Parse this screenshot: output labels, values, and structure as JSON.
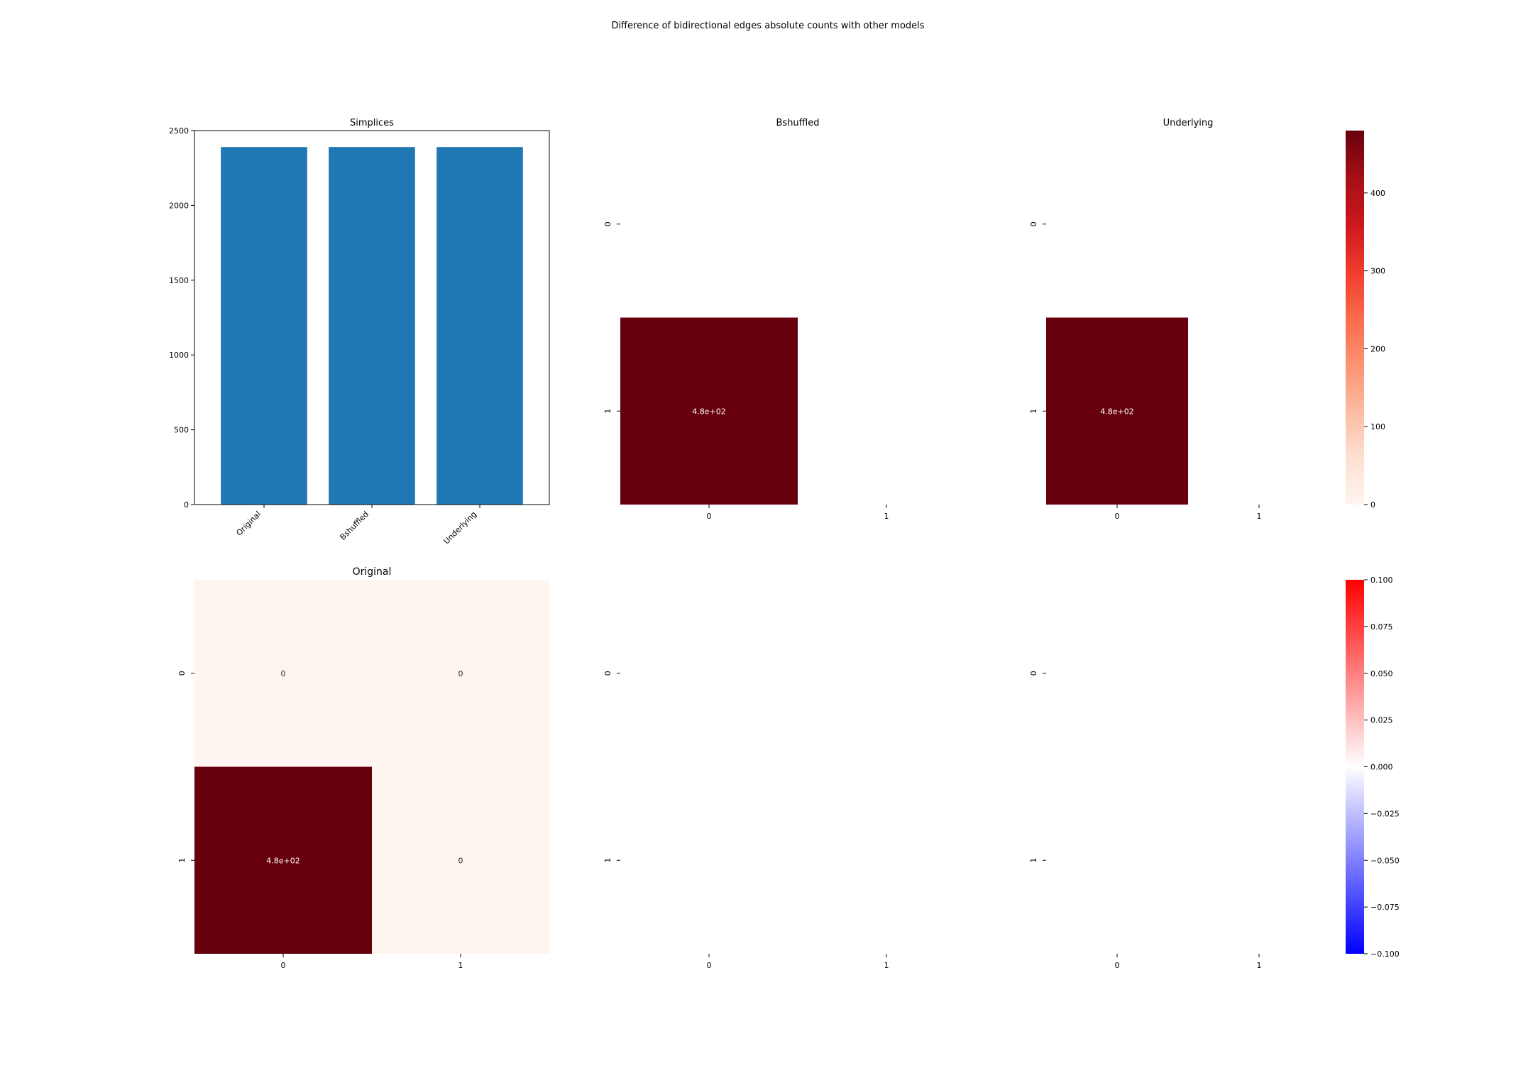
{
  "figure": {
    "suptitle": "Difference of bidirectional edges absolute counts with other models"
  },
  "chart_data": [
    {
      "type": "bar",
      "title": "Simplices",
      "categories": [
        "Original",
        "Bshuffled",
        "Underlying"
      ],
      "values": [
        2390,
        2390,
        2390
      ],
      "ylim": [
        0,
        2500
      ],
      "yticks": [
        "0",
        "500",
        "1000",
        "1500",
        "2000",
        "2500"
      ],
      "color": "#1f77b4"
    },
    {
      "type": "heatmap",
      "title": "Bshuffled",
      "xticks": [
        "0",
        "1"
      ],
      "yticks": [
        "0",
        "1"
      ],
      "cells": [
        {
          "row": 1,
          "col": 0,
          "value": 480,
          "label": "4.8e+02",
          "color": "#67000d"
        }
      ]
    },
    {
      "type": "heatmap",
      "title": "Underlying",
      "xticks": [
        "0",
        "1"
      ],
      "yticks": [
        "0",
        "1"
      ],
      "cells": [
        {
          "row": 1,
          "col": 0,
          "value": 480,
          "label": "4.8e+02",
          "color": "#67000d"
        }
      ],
      "colorbar": {
        "colormap": "Reds",
        "ticks": [
          "0",
          "100",
          "200",
          "300",
          "400"
        ],
        "range": [
          0,
          480
        ]
      }
    },
    {
      "type": "heatmap",
      "title": "Original",
      "xticks": [
        "0",
        "1"
      ],
      "yticks": [
        "0",
        "1"
      ],
      "cells": [
        {
          "row": 0,
          "col": 0,
          "value": 0,
          "label": "0",
          "color": "#fff5f0"
        },
        {
          "row": 0,
          "col": 1,
          "value": 0,
          "label": "0",
          "color": "#fff5f0"
        },
        {
          "row": 1,
          "col": 0,
          "value": 480,
          "label": "4.8e+02",
          "color": "#67000d"
        },
        {
          "row": 1,
          "col": 1,
          "value": 0,
          "label": "0",
          "color": "#fff5f0"
        }
      ]
    },
    {
      "type": "heatmap",
      "title": "",
      "xticks": [
        "0",
        "1"
      ],
      "yticks": [
        "0",
        "1"
      ],
      "cells": []
    },
    {
      "type": "heatmap",
      "title": "",
      "xticks": [
        "0",
        "1"
      ],
      "yticks": [
        "0",
        "1"
      ],
      "cells": [],
      "colorbar": {
        "colormap": "bwr",
        "ticks": [
          "0.100",
          "0.075",
          "0.050",
          "0.025",
          "0.000",
          "−0.025",
          "−0.050",
          "−0.075",
          "−0.100"
        ],
        "range": [
          -0.1,
          0.1
        ]
      }
    }
  ]
}
